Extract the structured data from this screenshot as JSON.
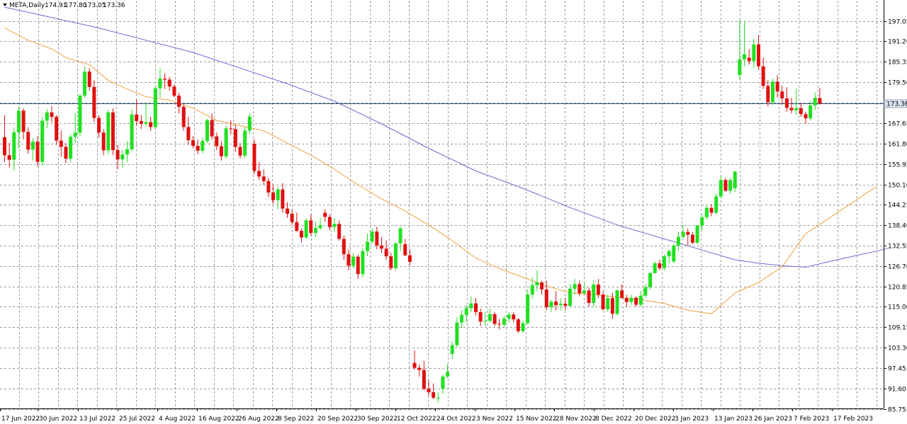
{
  "header": {
    "symbol": "META,Daily",
    "open": "174.91",
    "high": "177.80",
    "low": "173.05",
    "close": "173.36",
    "menu_icon": "triangle-down-icon"
  },
  "colors": {
    "bull": "#21e021",
    "bear": "#e01010",
    "ma_fast": "#f0a040",
    "ma_slow": "#6a6ad0",
    "grid": "#9a9a9a",
    "price_line": "#2b4a7a",
    "price_label_bg": "#dde3ee"
  },
  "chart_data": {
    "type": "candlestick",
    "symbol": "META",
    "timeframe": "Daily",
    "ylim": [
      85.75,
      200.0
    ],
    "yticks": [
      "197.05",
      "191.20",
      "185.35",
      "179.50",
      "173.65",
      "167.65",
      "161.80",
      "155.95",
      "150.10",
      "144.25",
      "138.40",
      "132.55",
      "126.70",
      "120.85",
      "115.00",
      "109.15",
      "103.30",
      "97.45",
      "91.60",
      "85.75"
    ],
    "current_price": "173.36",
    "grid": true,
    "xticks": [
      "17 Jun 2022",
      "30 Jun 2022",
      "13 Jul 2022",
      "25 Jul 2022",
      "4 Aug 2022",
      "16 Aug 2022",
      "26 Aug 2022",
      "8 Sep 2022",
      "20 Sep 2022",
      "30 Sep 2022",
      "12 Oct 2022",
      "24 Oct 2022",
      "3 Nov 2022",
      "15 Nov 2022",
      "28 Nov 2022",
      "8 Dec 2022",
      "20 Dec 2022",
      "3 Jan 2023",
      "13 Jan 2023",
      "26 Jan 2023",
      "7 Feb 2023",
      "17 Feb 2023"
    ],
    "candles": [
      [
        163.7,
        170.0,
        156.5,
        158.5
      ],
      [
        158.5,
        162.0,
        155.0,
        157.2
      ],
      [
        157.2,
        166.5,
        154.2,
        165.1
      ],
      [
        165.1,
        172.5,
        160.5,
        171.3
      ],
      [
        171.3,
        172.0,
        163.0,
        165.2
      ],
      [
        165.2,
        166.5,
        159.0,
        160.1
      ],
      [
        160.1,
        163.5,
        157.0,
        162.4
      ],
      [
        162.4,
        164.0,
        155.2,
        156.6
      ],
      [
        156.6,
        169.5,
        155.5,
        168.4
      ],
      [
        168.4,
        171.8,
        166.2,
        170.8
      ],
      [
        170.8,
        172.6,
        168.0,
        169.5
      ],
      [
        169.5,
        170.0,
        161.5,
        162.7
      ],
      [
        162.7,
        165.5,
        158.0,
        160.9
      ],
      [
        160.9,
        162.0,
        156.2,
        157.5
      ],
      [
        157.5,
        164.5,
        156.5,
        163.8
      ],
      [
        163.8,
        170.5,
        162.0,
        165.0
      ],
      [
        165.0,
        176.0,
        164.0,
        175.6
      ],
      [
        175.6,
        184.0,
        175.0,
        182.5
      ],
      [
        182.5,
        183.5,
        177.0,
        178.1
      ],
      [
        178.1,
        180.0,
        168.0,
        169.2
      ],
      [
        169.2,
        170.0,
        163.5,
        165.0
      ],
      [
        165.0,
        166.0,
        158.5,
        159.9
      ],
      [
        159.9,
        171.5,
        158.8,
        170.8
      ],
      [
        170.8,
        172.0,
        158.5,
        160.0
      ],
      [
        160.0,
        161.5,
        154.5,
        157.3
      ],
      [
        157.3,
        160.0,
        155.0,
        158.7
      ],
      [
        158.7,
        162.5,
        156.5,
        160.2
      ],
      [
        160.2,
        171.5,
        159.5,
        170.2
      ],
      [
        170.2,
        174.5,
        167.0,
        168.3
      ],
      [
        168.3,
        170.0,
        166.0,
        167.5
      ],
      [
        167.5,
        173.5,
        166.8,
        168.0
      ],
      [
        168.0,
        169.5,
        165.5,
        166.6
      ],
      [
        166.6,
        178.5,
        166.0,
        177.7
      ],
      [
        177.7,
        183.5,
        175.0,
        180.5
      ],
      [
        180.5,
        182.0,
        177.5,
        180.2
      ],
      [
        180.2,
        181.0,
        177.0,
        178.2
      ],
      [
        178.2,
        178.8,
        175.0,
        175.6
      ],
      [
        175.6,
        176.5,
        170.5,
        172.4
      ],
      [
        172.4,
        173.0,
        165.5,
        166.6
      ],
      [
        166.6,
        169.5,
        161.5,
        162.8
      ],
      [
        162.8,
        164.0,
        160.5,
        161.2
      ],
      [
        161.2,
        163.0,
        158.8,
        159.8
      ],
      [
        159.8,
        163.5,
        159.0,
        162.6
      ],
      [
        162.6,
        169.0,
        162.0,
        168.6
      ],
      [
        168.6,
        170.5,
        163.0,
        163.9
      ],
      [
        163.9,
        165.0,
        160.0,
        161.1
      ],
      [
        161.1,
        162.5,
        157.0,
        158.2
      ],
      [
        158.2,
        167.0,
        157.5,
        166.2
      ],
      [
        166.2,
        168.5,
        164.5,
        166.0
      ],
      [
        166.0,
        167.2,
        159.5,
        160.9
      ],
      [
        160.9,
        162.0,
        157.5,
        158.4
      ],
      [
        158.4,
        166.5,
        157.8,
        165.6
      ],
      [
        165.6,
        170.5,
        164.5,
        169.6
      ],
      [
        161.8,
        163.0,
        153.0,
        154.0
      ],
      [
        154.0,
        156.5,
        151.5,
        152.4
      ],
      [
        152.4,
        154.5,
        150.0,
        151.1
      ],
      [
        151.1,
        152.0,
        146.5,
        147.8
      ],
      [
        147.8,
        150.0,
        144.5,
        145.6
      ],
      [
        145.6,
        149.5,
        143.0,
        148.7
      ],
      [
        148.7,
        150.5,
        142.0,
        143.2
      ],
      [
        143.2,
        145.0,
        140.5,
        141.7
      ],
      [
        141.7,
        143.0,
        138.5,
        139.3
      ],
      [
        139.3,
        142.0,
        136.5,
        136.8
      ],
      [
        136.8,
        137.5,
        133.5,
        134.9
      ],
      [
        134.9,
        140.5,
        134.5,
        139.8
      ],
      [
        139.8,
        141.5,
        135.5,
        136.2
      ],
      [
        136.2,
        139.5,
        135.0,
        137.6
      ],
      [
        137.6,
        140.5,
        137.0,
        138.4
      ],
      [
        142.0,
        143.0,
        139.5,
        140.8
      ],
      [
        140.8,
        141.5,
        137.0,
        137.9
      ],
      [
        137.9,
        140.5,
        136.5,
        138.8
      ],
      [
        138.8,
        139.8,
        134.0,
        134.5
      ],
      [
        134.5,
        135.5,
        128.5,
        130.1
      ],
      [
        130.1,
        131.5,
        125.5,
        126.8
      ],
      [
        126.8,
        130.5,
        126.0,
        129.4
      ],
      [
        129.4,
        130.0,
        123.0,
        124.4
      ],
      [
        124.4,
        132.0,
        123.5,
        131.0
      ],
      [
        131.0,
        136.0,
        129.5,
        133.7
      ],
      [
        133.7,
        137.5,
        133.0,
        136.6
      ],
      [
        136.6,
        138.0,
        131.5,
        132.6
      ],
      [
        132.6,
        135.0,
        130.5,
        131.7
      ],
      [
        131.7,
        134.0,
        128.5,
        129.5
      ],
      [
        129.5,
        130.5,
        125.5,
        126.1
      ],
      [
        126.1,
        133.5,
        125.5,
        133.2
      ],
      [
        133.2,
        138.0,
        131.0,
        137.5
      ],
      [
        133.0,
        134.5,
        129.5,
        129.8
      ],
      [
        129.8,
        131.5,
        127.0,
        127.9
      ],
      [
        98.9,
        102.5,
        97.0,
        97.5
      ],
      [
        97.5,
        98.5,
        95.0,
        96.9
      ],
      [
        96.9,
        99.5,
        91.0,
        91.5
      ],
      [
        91.5,
        94.0,
        89.5,
        90.5
      ],
      [
        90.5,
        93.0,
        88.5,
        88.9
      ],
      [
        88.9,
        90.5,
        87.5,
        88.9
      ],
      [
        91.5,
        95.5,
        90.0,
        95.0
      ],
      [
        95.0,
        98.5,
        94.5,
        96.3
      ],
      [
        101.5,
        105.0,
        100.0,
        104.0
      ],
      [
        104.0,
        112.0,
        103.5,
        110.5
      ],
      [
        110.5,
        114.0,
        109.0,
        112.7
      ],
      [
        112.7,
        115.5,
        110.5,
        114.6
      ],
      [
        114.6,
        118.0,
        113.5,
        116.0
      ],
      [
        116.0,
        117.5,
        112.5,
        113.5
      ],
      [
        113.5,
        114.5,
        109.5,
        110.8
      ],
      [
        110.8,
        113.5,
        109.5,
        111.0
      ],
      [
        111.0,
        114.5,
        110.5,
        112.9
      ],
      [
        112.9,
        113.5,
        109.5,
        110.1
      ],
      [
        110.1,
        111.5,
        108.5,
        109.9
      ],
      [
        109.9,
        112.5,
        109.0,
        111.6
      ],
      [
        111.6,
        113.5,
        110.5,
        112.8
      ],
      [
        112.8,
        113.5,
        110.5,
        111.4
      ],
      [
        111.4,
        111.8,
        107.5,
        108.0
      ],
      [
        108.0,
        111.0,
        107.5,
        110.3
      ],
      [
        110.3,
        120.0,
        110.0,
        118.5
      ],
      [
        118.5,
        123.5,
        117.5,
        121.2
      ],
      [
        121.2,
        125.5,
        119.5,
        122.0
      ],
      [
        122.0,
        122.5,
        118.5,
        120.0
      ],
      [
        120.0,
        122.5,
        114.0,
        114.9
      ],
      [
        114.9,
        117.0,
        113.5,
        116.5
      ],
      [
        116.5,
        119.5,
        114.0,
        115.5
      ],
      [
        115.5,
        117.5,
        114.0,
        115.9
      ],
      [
        115.9,
        117.5,
        114.0,
        115.3
      ],
      [
        115.3,
        121.5,
        115.0,
        120.2
      ],
      [
        120.2,
        123.0,
        118.5,
        121.5
      ],
      [
        121.5,
        122.5,
        118.0,
        118.9
      ],
      [
        118.9,
        122.0,
        118.5,
        119.7
      ],
      [
        119.7,
        120.5,
        115.0,
        116.1
      ],
      [
        116.1,
        122.5,
        115.0,
        121.4
      ],
      [
        121.4,
        123.0,
        117.5,
        118.5
      ],
      [
        118.5,
        119.5,
        114.0,
        114.3
      ],
      [
        114.3,
        118.5,
        113.5,
        117.5
      ],
      [
        117.5,
        119.0,
        111.5,
        113.0
      ],
      [
        113.0,
        120.0,
        112.5,
        119.7
      ],
      [
        119.7,
        121.5,
        117.5,
        117.5
      ],
      [
        117.5,
        118.5,
        115.0,
        116.4
      ],
      [
        116.4,
        118.5,
        115.5,
        117.6
      ],
      [
        117.6,
        118.0,
        115.0,
        115.6
      ],
      [
        115.6,
        119.5,
        115.0,
        118.2
      ],
      [
        118.2,
        121.5,
        117.5,
        120.6
      ],
      [
        120.6,
        125.0,
        120.0,
        124.7
      ],
      [
        124.7,
        128.0,
        124.5,
        127.5
      ],
      [
        127.5,
        128.5,
        125.5,
        126.1
      ],
      [
        126.1,
        130.0,
        125.5,
        129.5
      ],
      [
        129.5,
        131.5,
        127.5,
        131.0
      ],
      [
        128.0,
        133.0,
        127.5,
        132.6
      ],
      [
        132.6,
        136.5,
        131.0,
        135.1
      ],
      [
        135.1,
        138.5,
        134.5,
        136.5
      ],
      [
        136.5,
        137.5,
        132.5,
        135.7
      ],
      [
        135.7,
        136.5,
        133.0,
        133.4
      ],
      [
        133.4,
        138.5,
        133.0,
        138.3
      ],
      [
        138.3,
        141.5,
        137.0,
        140.7
      ],
      [
        140.7,
        144.0,
        140.0,
        143.4
      ],
      [
        143.4,
        144.5,
        141.0,
        142.0
      ],
      [
        142.0,
        147.5,
        141.5,
        146.7
      ],
      [
        146.7,
        152.5,
        146.0,
        151.4
      ],
      [
        151.4,
        152.0,
        148.0,
        148.3
      ],
      [
        148.3,
        152.0,
        147.5,
        151.4
      ],
      [
        149.0,
        154.0,
        148.0,
        153.8
      ],
      [
        181.5,
        197.5,
        180.0,
        186.0
      ],
      [
        186.0,
        197.0,
        184.0,
        187.5
      ],
      [
        186.5,
        189.0,
        184.5,
        185.5
      ],
      [
        185.5,
        192.0,
        183.5,
        190.3
      ],
      [
        190.3,
        193.0,
        183.0,
        184.0
      ],
      [
        184.0,
        186.5,
        177.5,
        178.4
      ],
      [
        178.4,
        180.0,
        172.5,
        173.7
      ],
      [
        173.7,
        180.5,
        173.0,
        179.6
      ],
      [
        179.6,
        181.5,
        175.0,
        176.8
      ],
      [
        176.8,
        178.5,
        173.0,
        174.8
      ],
      [
        174.8,
        178.0,
        171.0,
        172.1
      ],
      [
        172.1,
        175.0,
        170.5,
        171.4
      ],
      [
        171.4,
        177.5,
        170.0,
        172.0
      ],
      [
        172.0,
        173.5,
        169.5,
        170.3
      ],
      [
        170.3,
        171.0,
        167.5,
        169.1
      ],
      [
        169.1,
        174.0,
        168.5,
        172.8
      ],
      [
        172.8,
        176.5,
        171.5,
        175.0
      ],
      [
        174.91,
        177.8,
        173.05,
        173.36
      ]
    ],
    "series": [
      {
        "name": "MA fast",
        "points": [
          [
            0,
            195.0
          ],
          [
            5,
            191.5
          ],
          [
            10,
            189.0
          ],
          [
            13,
            186.5
          ],
          [
            18,
            184.5
          ],
          [
            22,
            180.0
          ],
          [
            26,
            177.5
          ],
          [
            30,
            175.3
          ],
          [
            35,
            174.3
          ],
          [
            40,
            172.0
          ],
          [
            45,
            168.5
          ],
          [
            50,
            167.0
          ],
          [
            55,
            165.5
          ],
          [
            60,
            162.0
          ],
          [
            65,
            158.5
          ],
          [
            70,
            154.5
          ],
          [
            75,
            150.0
          ],
          [
            80,
            146.0
          ],
          [
            85,
            142.5
          ],
          [
            90,
            138.5
          ],
          [
            95,
            134.0
          ],
          [
            100,
            129.0
          ],
          [
            105,
            126.0
          ],
          [
            110,
            123.5
          ],
          [
            115,
            121.0
          ],
          [
            120,
            119.0
          ],
          [
            125,
            118.5
          ],
          [
            130,
            117.8
          ],
          [
            135,
            117.0
          ],
          [
            140,
            116.0
          ],
          [
            145,
            114.0
          ],
          [
            150,
            113.0
          ],
          [
            155,
            119.0
          ],
          [
            160,
            122.0
          ],
          [
            165,
            126.5
          ],
          [
            170,
            136.0
          ],
          [
            175,
            140.5
          ],
          [
            180,
            145.0
          ],
          [
            185,
            149.5
          ]
        ]
      },
      {
        "name": "MA slow",
        "points": [
          [
            0,
            201.0
          ],
          [
            10,
            198.0
          ],
          [
            20,
            195.0
          ],
          [
            30,
            191.5
          ],
          [
            40,
            188.0
          ],
          [
            50,
            183.5
          ],
          [
            60,
            179.0
          ],
          [
            70,
            174.0
          ],
          [
            80,
            167.5
          ],
          [
            90,
            160.5
          ],
          [
            100,
            154.0
          ],
          [
            110,
            149.0
          ],
          [
            120,
            143.5
          ],
          [
            130,
            138.5
          ],
          [
            140,
            134.5
          ],
          [
            145,
            132.5
          ],
          [
            150,
            130.5
          ],
          [
            155,
            128.5
          ],
          [
            160,
            127.5
          ],
          [
            165,
            126.8
          ],
          [
            170,
            126.4
          ],
          [
            175,
            128.0
          ],
          [
            180,
            129.5
          ],
          [
            185,
            131.0
          ],
          [
            188,
            132.0
          ]
        ]
      }
    ]
  }
}
